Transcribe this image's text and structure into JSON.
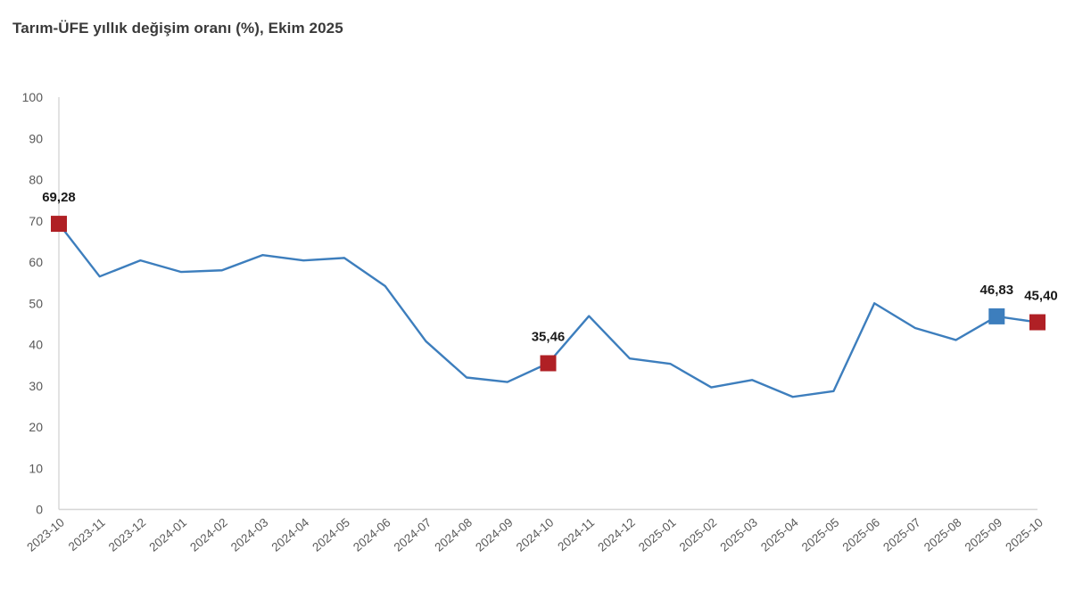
{
  "title": "Tarım-ÜFE yıllık değişim oranı (%), Ekim 2025",
  "chart_data": {
    "type": "line",
    "title": "Tarım-ÜFE yıllık değişim oranı (%), Ekim 2025",
    "x": [
      "2023-10",
      "2023-11",
      "2023-12",
      "2024-01",
      "2024-02",
      "2024-03",
      "2024-04",
      "2024-05",
      "2024-06",
      "2024-07",
      "2024-08",
      "2024-09",
      "2024-10",
      "2024-11",
      "2024-12",
      "2025-01",
      "2025-02",
      "2025-03",
      "2025-04",
      "2025-05",
      "2025-06",
      "2025-07",
      "2025-08",
      "2025-09",
      "2025-10"
    ],
    "series": [
      {
        "name": "Tarım-ÜFE yıllık değişim oranı (%)",
        "values": [
          69.28,
          56.5,
          60.4,
          57.6,
          58.0,
          61.7,
          60.4,
          61.0,
          54.2,
          40.8,
          32.0,
          30.9,
          35.46,
          46.9,
          36.6,
          35.3,
          29.6,
          31.4,
          27.3,
          28.7,
          50.0,
          44.0,
          41.1,
          46.83,
          45.4
        ]
      }
    ],
    "ylim": [
      0,
      100
    ],
    "yticks": [
      0,
      10,
      20,
      30,
      40,
      50,
      60,
      70,
      80,
      90,
      100
    ],
    "grid": false,
    "legend_position": "none",
    "annotations": [
      {
        "x": "2023-10",
        "index": 0,
        "label": "69,28",
        "marker": "square",
        "color": "#b02025"
      },
      {
        "x": "2024-10",
        "index": 12,
        "label": "35,46",
        "marker": "square",
        "color": "#b02025"
      },
      {
        "x": "2025-09",
        "index": 23,
        "label": "46,83",
        "marker": "square",
        "color": "#3d7ebd"
      },
      {
        "x": "2025-10",
        "index": 24,
        "label": "45,40",
        "marker": "square",
        "color": "#b02025"
      }
    ],
    "colors": {
      "line": "#3d7ebd",
      "axis": "#d6d6d6",
      "tick_label": "#595959",
      "data_label": "#1a1a1a"
    }
  }
}
